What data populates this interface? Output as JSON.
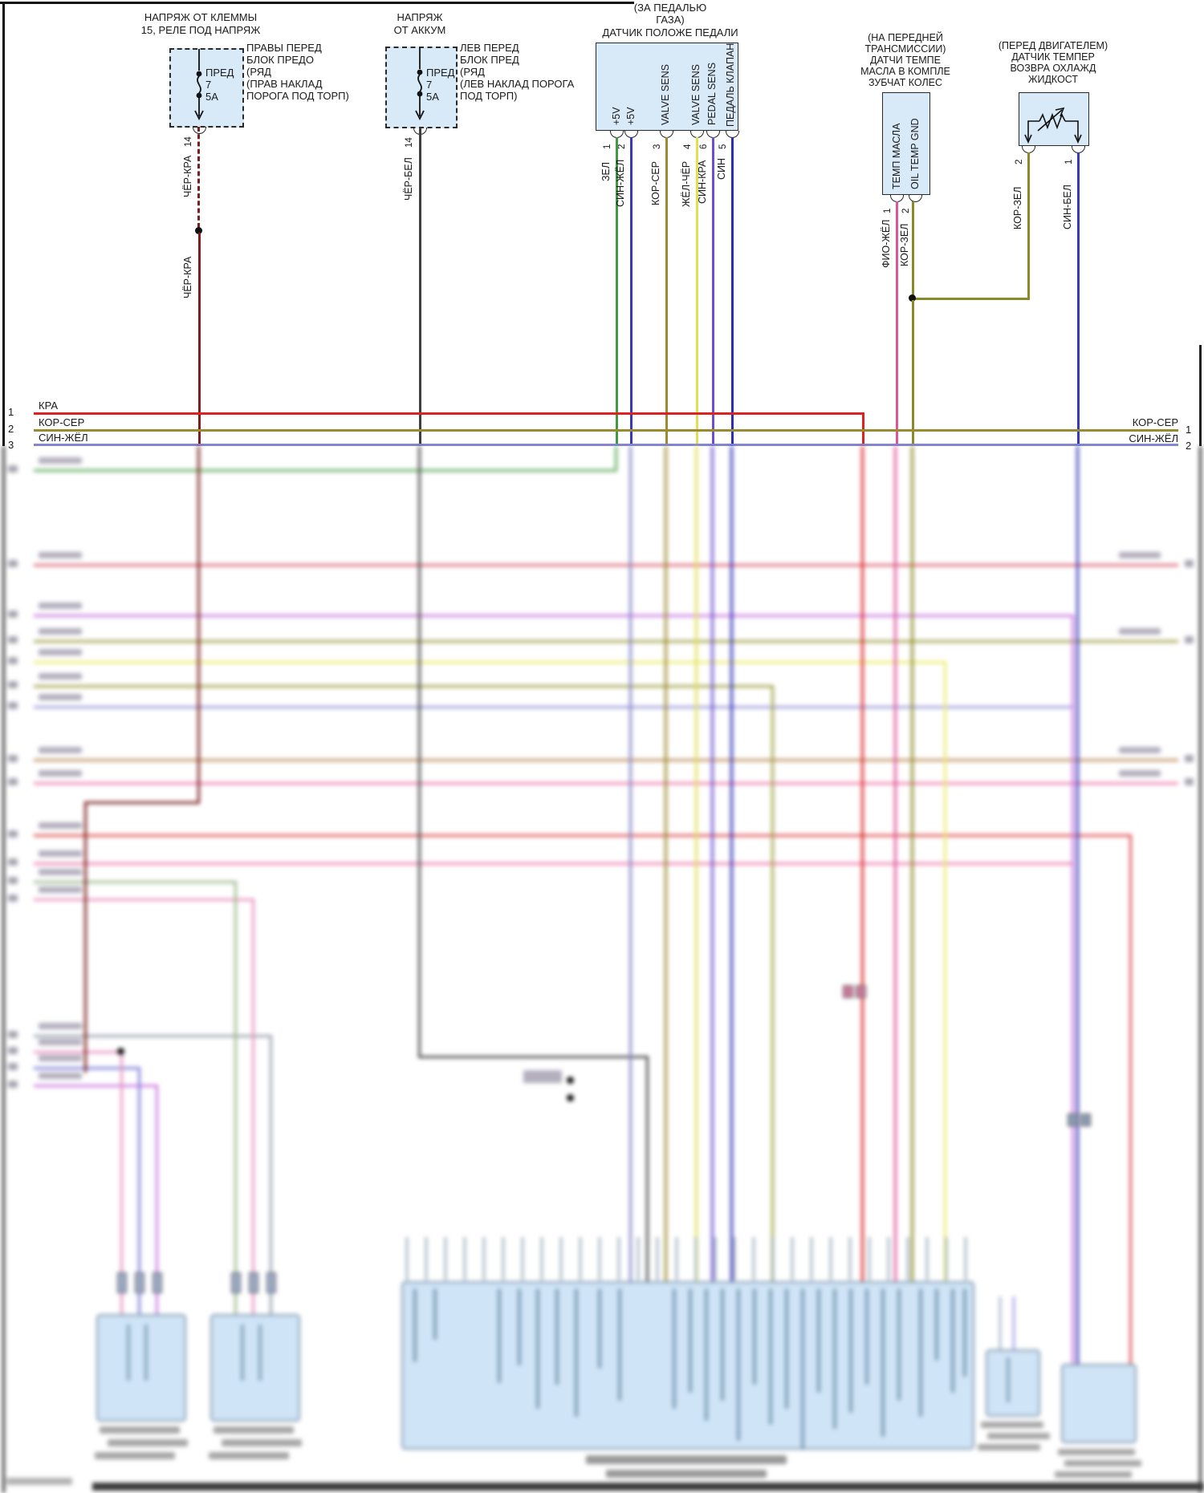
{
  "diagram": {
    "language": "Russian",
    "kind": "automotive wiring diagram"
  },
  "wire_colors": {
    "cher_kra": "#7a2020",
    "cher_bel": "#3f3f3f",
    "zel": "#3f9b3f",
    "sin_zhel": "#3a3ab8",
    "kor_ser": "#9a8b30",
    "zhel_cher": "#e3df55",
    "sin_kra": "#6a4fd0",
    "sin": "#2d2db5",
    "fio_zhel": "#e0529a",
    "kor_zel": "#8a8a28",
    "sin_bel": "#3a3ab8",
    "kra_bus": "#dd2222",
    "sin_zhel_bus": "#8585d0",
    "component_fill": "#d8e9f8"
  },
  "fuse_left": {
    "title1": "НАПРЯЖ ОТ КЛЕММЫ",
    "title2": "15, РЕЛЕ ПОД НАПРЯЖ",
    "fuse_label": "ПРЕД",
    "fuse_num": "7",
    "fuse_amp": "5А",
    "note1": "ПРАВЫ ПЕРЕД",
    "note2": "БЛОК ПРЕДО",
    "note3": "(РЯД",
    "note4": "(ПРАВ НАКЛАД",
    "note5": "ПОРОГА ПОД ТОРП)",
    "pin": "14",
    "wire": "ЧЁР-КРА",
    "wire2": "ЧЁР-КРА"
  },
  "fuse_right": {
    "title1": "НАПРЯЖ",
    "title2": "ОТ АККУМ",
    "fuse_label": "ПРЕД",
    "fuse_num": "7",
    "fuse_amp": "5А",
    "note1": "ЛЕВ ПЕРЕД",
    "note2": "БЛОК ПРЕД",
    "note3": "(РЯД",
    "note4": "(ЛЕВ НАКЛАД ПОРОГА",
    "note5": "ПОД ТОРП)",
    "pin": "14",
    "wire": "ЧЁР-БЕЛ"
  },
  "pedal_sensor": {
    "title1": "(ЗА ПЕДАЛЬЮ",
    "title2": "ГАЗА)",
    "title3": "ДАТЧИК ПОЛОЖЕ ПЕДАЛИ",
    "pins": [
      {
        "num": "1",
        "label": "+5V",
        "wire": "ЗЕЛ"
      },
      {
        "num": "2",
        "label": "+5V",
        "wire": "СИН-ЖЁЛ"
      },
      {
        "num": "3",
        "label": "VALVE SENS",
        "wire": "КОР-СЕР"
      },
      {
        "num": "4",
        "label": "VALVE SENS",
        "wire": "ЖЁЛ-ЧЁР"
      },
      {
        "num": "6",
        "label": "PEDAL SENS",
        "wire": "СИН-КРА"
      },
      {
        "num": "5",
        "label": "ПЕДАЛЬ КЛАПАН",
        "wire": "СИН"
      }
    ]
  },
  "oil_temp_sensor": {
    "title1": "(НА ПЕРЕДНЕЙ",
    "title2": "ТРАНСМИССИИ)",
    "title3": "ДАТЧИ ТЕМПЕ",
    "title4": "МАСЛА В КОМПЛЕ",
    "title5": "ЗУБЧАТ КОЛЕС",
    "pins": [
      {
        "num": "1",
        "label": "ТЕМП МАСЛА",
        "wire": "ФИО-ЖЁЛ"
      },
      {
        "num": "2",
        "label": "OIL TEMP GND",
        "wire": "КОР-ЗЕЛ"
      }
    ]
  },
  "coolant_temp_sensor": {
    "title1": "(ПЕРЕД ДВИГАТЕЛЕМ)",
    "title2": "ДАТЧИК ТЕМПЕР",
    "title3": "ВОЗВРА ОХЛАЖД",
    "title4": "ЖИДКОСТ",
    "pins": [
      {
        "num": "2",
        "wire": "КОР-ЗЕЛ"
      },
      {
        "num": "1",
        "wire": "СИН-БЕЛ"
      }
    ]
  },
  "bus_left": [
    {
      "num": "1",
      "label": "КРА"
    },
    {
      "num": "2",
      "label": "КОР-СЕР"
    },
    {
      "num": "3",
      "label": "СИН-ЖЁЛ"
    }
  ],
  "bus_right": [
    {
      "num": "1",
      "label": "КОР-СЕР"
    },
    {
      "num": "2",
      "label": "СИН-ЖЁЛ"
    }
  ]
}
